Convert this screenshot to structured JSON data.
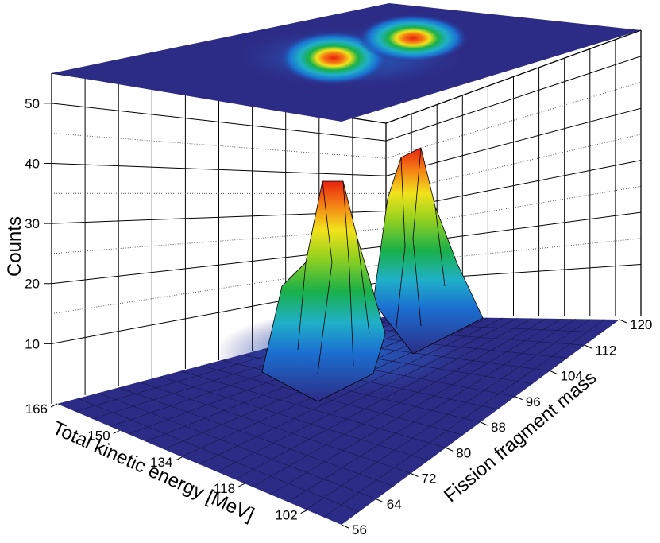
{
  "chart_data": {
    "type": "surface3d",
    "title": "",
    "zlabel": "Counts",
    "xlabel": "Total kinetic energy [MeV]",
    "ylabel": "Fission fragment mass",
    "x_ticks": [
      "166",
      "150",
      "134",
      "118",
      "102"
    ],
    "y_ticks": [
      "56",
      "64",
      "72",
      "80",
      "88",
      "96",
      "104",
      "112",
      "120"
    ],
    "z_ticks": [
      "10",
      "20",
      "30",
      "40",
      "50"
    ],
    "xlim": [
      98,
      166
    ],
    "ylim": [
      56,
      120
    ],
    "zlim": [
      0,
      55
    ],
    "colormap": [
      "#2c2c86",
      "#1b6fd1",
      "#20b0c8",
      "#19b04a",
      "#9ad21e",
      "#f2e21c",
      "#f47a14",
      "#e8220f"
    ],
    "projection": "top contour map",
    "peaks": [
      {
        "tke": 145,
        "mass": 80,
        "counts": 40
      },
      {
        "tke": 144,
        "mass": 98,
        "counts": 42
      }
    ]
  }
}
